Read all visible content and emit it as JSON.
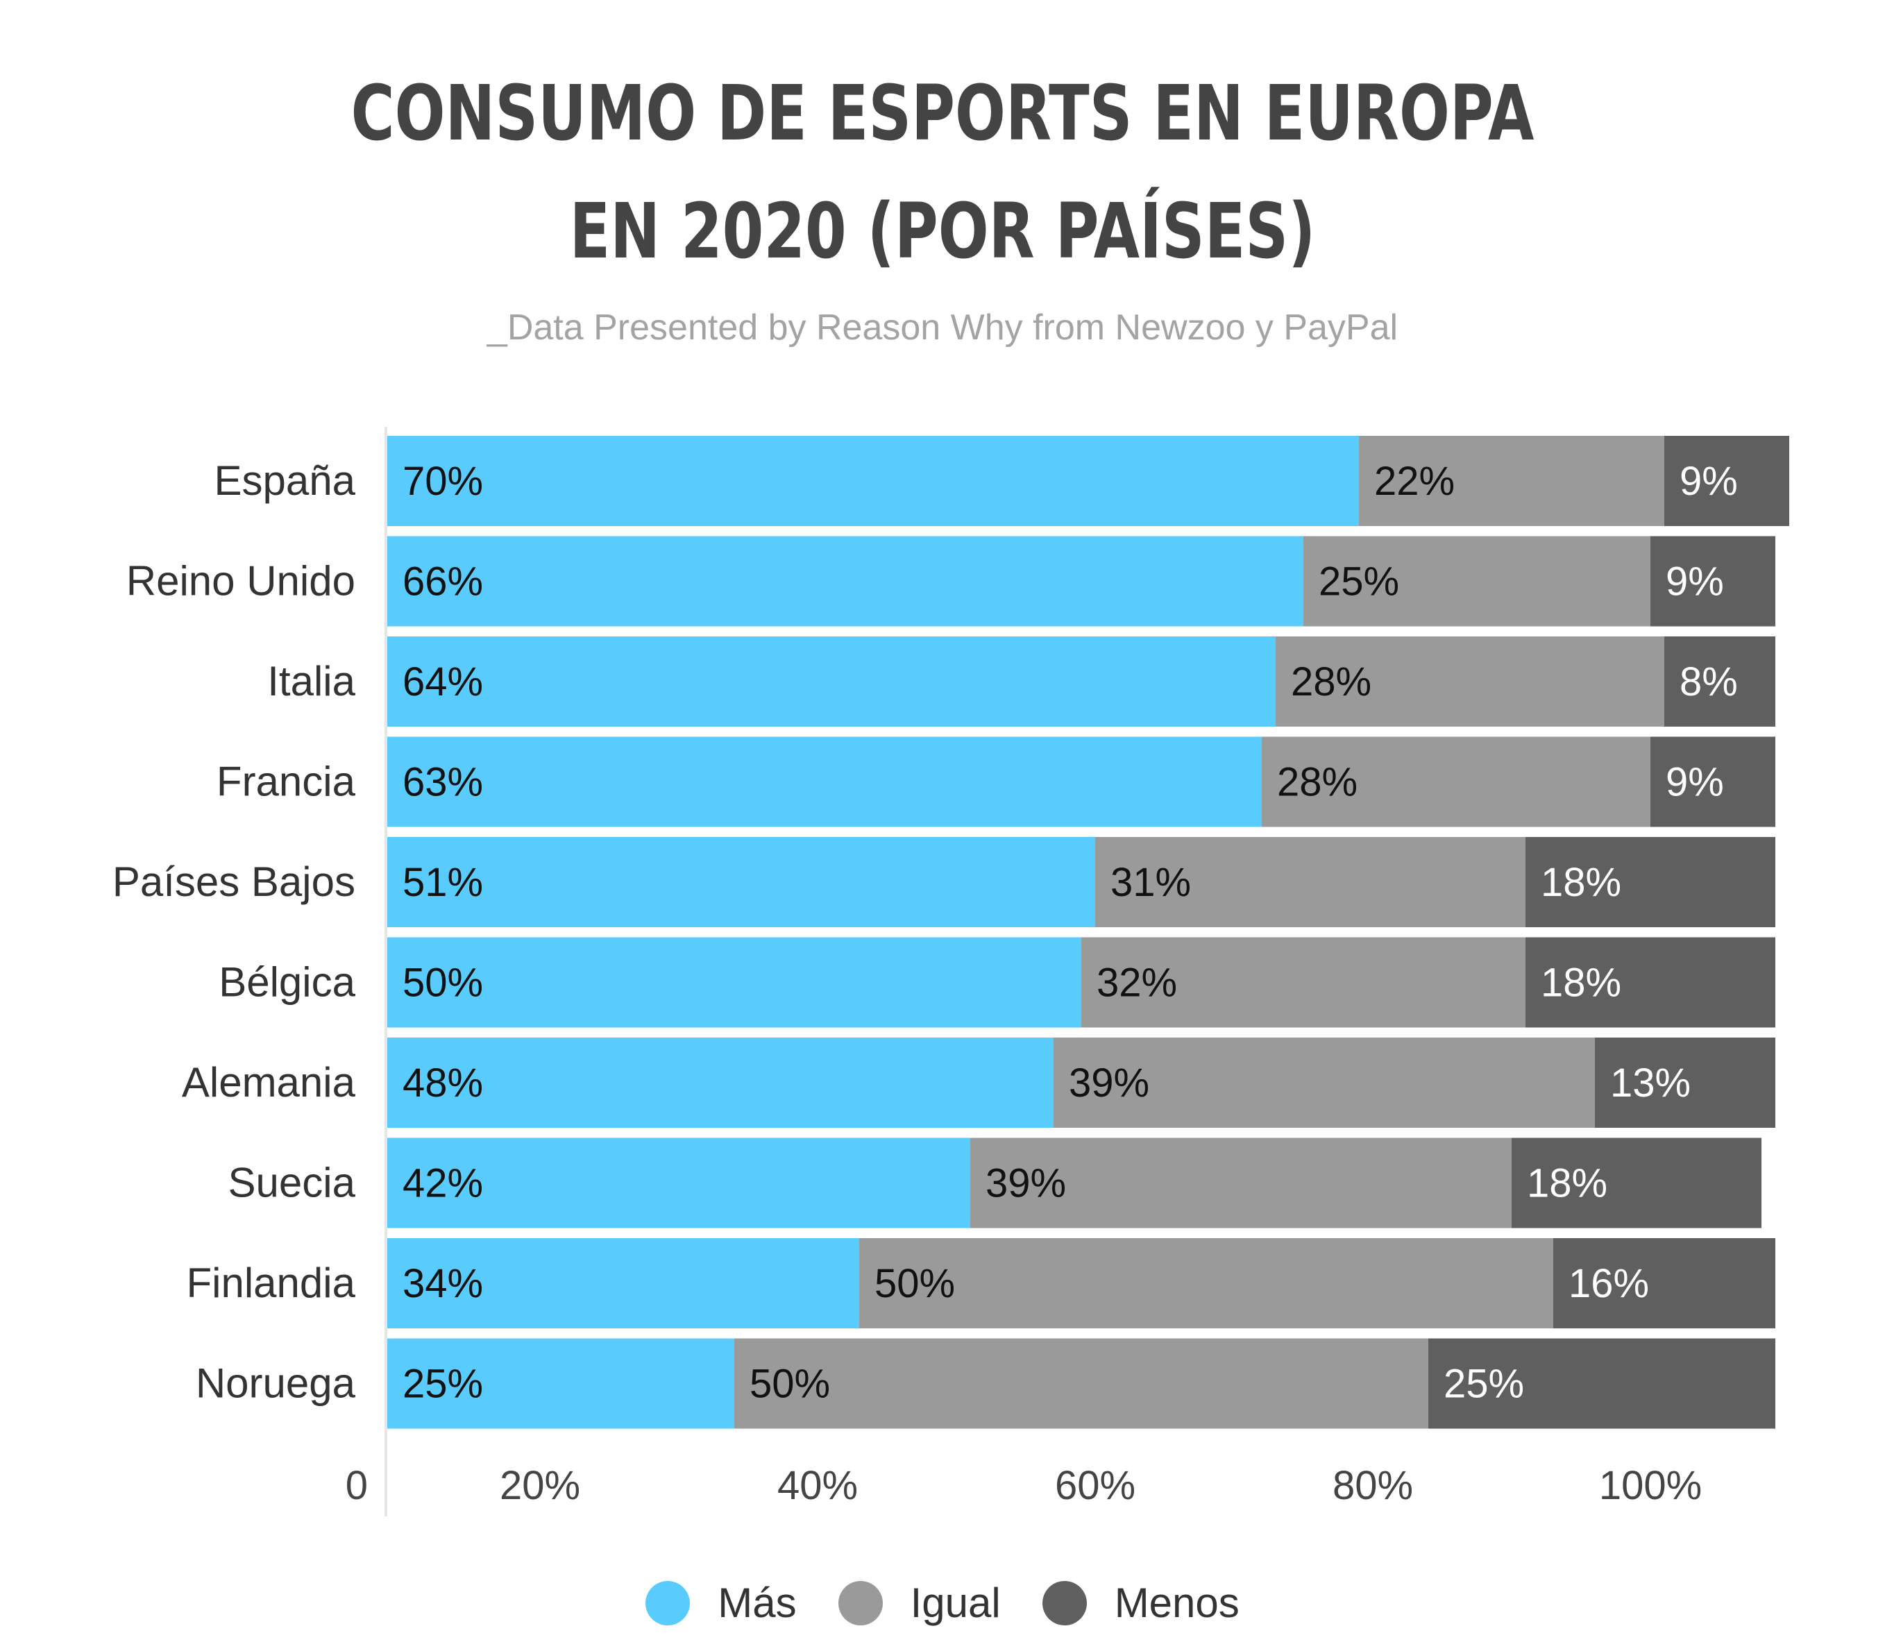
{
  "chart_data": {
    "type": "bar",
    "orientation": "horizontal",
    "stacked": true,
    "title": [
      "CONSUMO DE ESPORTS EN EUROPA",
      "EN 2020 (POR PAÍSES)"
    ],
    "subtitle": "_Data Presented by Reason Why from Newzoo y PayPal",
    "categories": [
      "España",
      "Reino Unido",
      "Italia",
      "Francia",
      "Países Bajos",
      "Bélgica",
      "Alemania",
      "Suecia",
      "Finlandia",
      "Noruega"
    ],
    "series": [
      {
        "name": "Más",
        "color": "#59cbfd",
        "label_color": "#111111",
        "values": [
          70,
          66,
          64,
          63,
          51,
          50,
          48,
          42,
          34,
          25
        ]
      },
      {
        "name": "Igual",
        "color": "#9a9a9a",
        "label_color": "#111111",
        "values": [
          22,
          25,
          28,
          28,
          31,
          32,
          39,
          39,
          50,
          50
        ]
      },
      {
        "name": "Menos",
        "color": "#5f5f5f",
        "label_color": "#ffffff",
        "values": [
          9,
          9,
          8,
          9,
          18,
          18,
          13,
          18,
          16,
          25
        ]
      }
    ],
    "value_suffix": "%",
    "xlim": [
      0,
      100
    ],
    "x_ticks": [
      "0",
      "20%",
      "40%",
      "60%",
      "80%",
      "100%"
    ],
    "grid": false,
    "legend_position": "bottom"
  }
}
